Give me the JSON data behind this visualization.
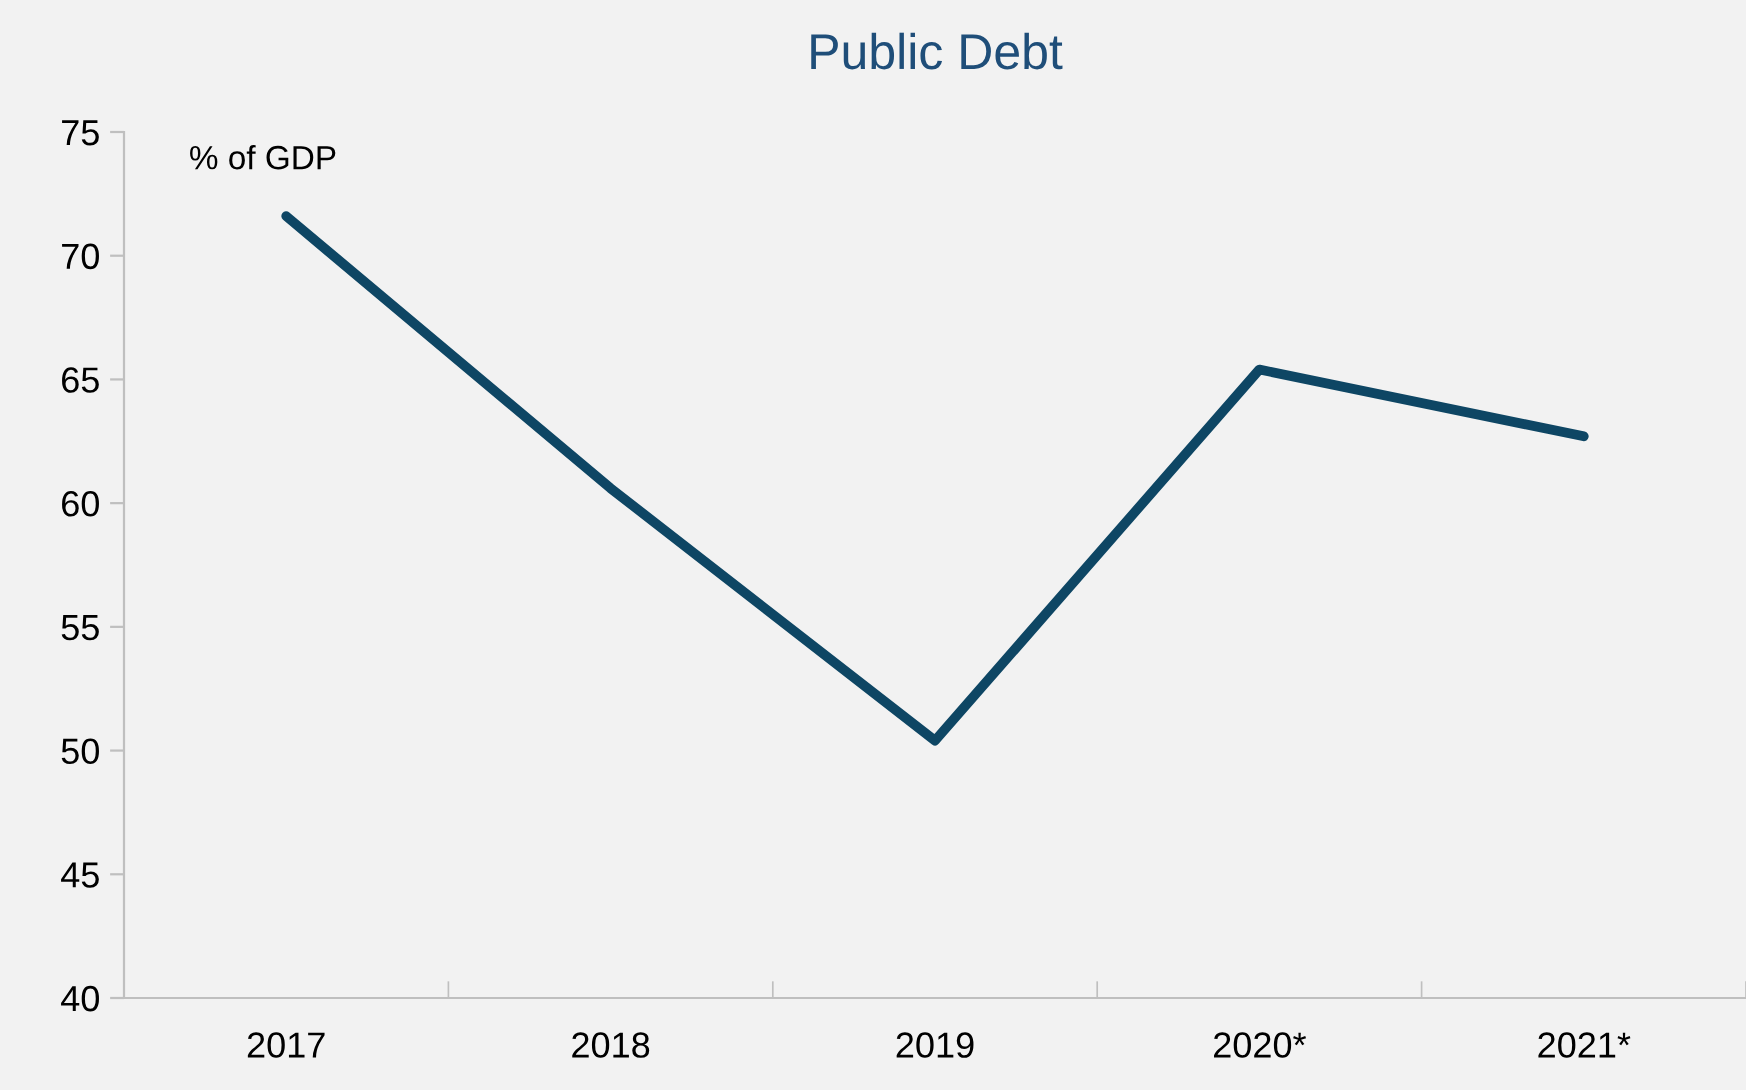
{
  "chart_data": {
    "type": "line",
    "title": "Public Debt",
    "ylabel": "% of GDP",
    "categories": [
      "2017",
      "2018",
      "2019",
      "2020*",
      "2021*"
    ],
    "series": [
      {
        "color": "#0e4664",
        "values": [
          71.6,
          60.6,
          50.4,
          65.4,
          62.7
        ]
      }
    ],
    "ylim": [
      40,
      75
    ],
    "yticks": [
      40,
      45,
      50,
      55,
      60,
      65,
      70,
      75
    ],
    "grid": false,
    "marker": "none",
    "line_style": "solid"
  }
}
